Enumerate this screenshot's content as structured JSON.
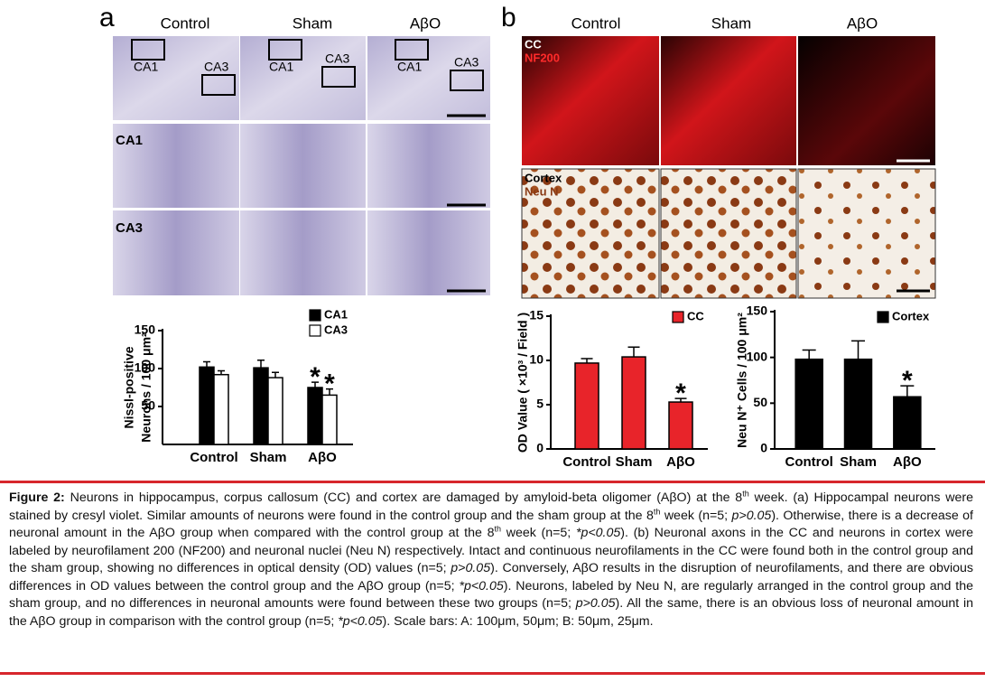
{
  "panels": {
    "a": {
      "label": "a",
      "columns": [
        "Control",
        "Sham",
        "AβO"
      ],
      "regions": [
        "CA1",
        "CA3"
      ],
      "rows": [
        "CA1",
        "CA3"
      ]
    },
    "b": {
      "label": "b",
      "columns": [
        "Control",
        "Sham",
        "AβO"
      ],
      "stains": [
        [
          "CC",
          "NF200"
        ],
        [
          "Cortex",
          "Neu N"
        ]
      ]
    }
  },
  "chart_data": [
    {
      "type": "bar",
      "ylabel": [
        "Nissl-positive",
        "Neurons / 100 μm²"
      ],
      "categories": [
        "Control",
        "Sham",
        "AβO"
      ],
      "series": [
        {
          "name": "CA1",
          "color": "#000000",
          "values": [
            102,
            101,
            75
          ],
          "errors": [
            7,
            10,
            7
          ],
          "significance": [
            null,
            null,
            "*"
          ]
        },
        {
          "name": "CA3",
          "color": "#ffffff",
          "values": [
            92,
            88,
            65
          ],
          "errors": [
            5,
            7,
            8
          ],
          "significance": [
            null,
            null,
            "*"
          ]
        }
      ],
      "ylim": [
        0,
        150
      ],
      "yticks": [
        50,
        100,
        150
      ],
      "legend": "top-right"
    },
    {
      "type": "bar",
      "ylabel": [
        "OD Value ( ×10³ / Field )"
      ],
      "categories": [
        "Control",
        "Sham",
        "AβO"
      ],
      "series": [
        {
          "name": "CC",
          "color": "#e8242a",
          "values": [
            9.7,
            10.4,
            5.3
          ],
          "errors": [
            0.5,
            1.1,
            0.4
          ],
          "significance": [
            null,
            null,
            "*"
          ]
        }
      ],
      "ylim": [
        0,
        15
      ],
      "yticks": [
        0,
        5,
        10,
        15
      ],
      "legend": "top-right"
    },
    {
      "type": "bar",
      "ylabel": [
        "Neu N⁺ Cells / 100 μm²"
      ],
      "categories": [
        "Control",
        "Sham",
        "AβO"
      ],
      "series": [
        {
          "name": "Cortex",
          "color": "#000000",
          "values": [
            98,
            98,
            57
          ],
          "errors": [
            10,
            20,
            12
          ],
          "significance": [
            null,
            null,
            "*"
          ]
        }
      ],
      "ylim": [
        0,
        150
      ],
      "yticks": [
        0,
        50,
        100,
        150
      ],
      "legend": "top-right"
    }
  ],
  "caption": [
    {
      "text": "Figure 2:",
      "format": "bold"
    },
    {
      "text": " Neurons in hippocampus, corpus callosum (CC) and cortex are damaged by amyloid-beta oligomer (AβO) at the 8"
    },
    {
      "text": "th",
      "format": "sup"
    },
    {
      "text": " week. (a) Hippocampal neurons were stained by cresyl violet. Similar amounts of neurons were found in the control group and the sham group at the 8"
    },
    {
      "text": "th",
      "format": "sup"
    },
    {
      "text": " week (n=5; "
    },
    {
      "text": "p>0.05",
      "format": "italic"
    },
    {
      "text": "). Otherwise, there is a decrease of neuronal amount in the AβO group when compared with the control group at the 8"
    },
    {
      "text": "th",
      "format": "sup"
    },
    {
      "text": " week (n=5; "
    },
    {
      "text": "*p<0.05",
      "format": "italic"
    },
    {
      "text": "). (b) Neuronal axons in the CC and neurons in cortex were labeled by neurofilament 200 (NF200) and neuronal nuclei (Neu N) respectively. Intact and continuous neurofilaments in the CC were found both in the control group and the sham group, showing no differences in optical density (OD) values (n=5; "
    },
    {
      "text": "p>0.05",
      "format": "italic"
    },
    {
      "text": "). Conversely, AβO results in the disruption of neurofilaments, and there are obvious differences in OD values between the control group and the AβO group (n=5; "
    },
    {
      "text": "*p<0.05",
      "format": "italic"
    },
    {
      "text": "). Neurons, labeled by Neu N, are regularly arranged in the control group and the sham group, and no differences in neuronal amounts were found between these two groups (n=5; "
    },
    {
      "text": "p>0.05",
      "format": "italic"
    },
    {
      "text": "). All the same, there is an obvious loss of neuronal amount in the AβO group in comparison with the control group (n=5; "
    },
    {
      "text": "*p<0.05",
      "format": "italic"
    },
    {
      "text": "). Scale bars: A: 100μm, 50μm; B: 50μm, 25μm."
    }
  ]
}
